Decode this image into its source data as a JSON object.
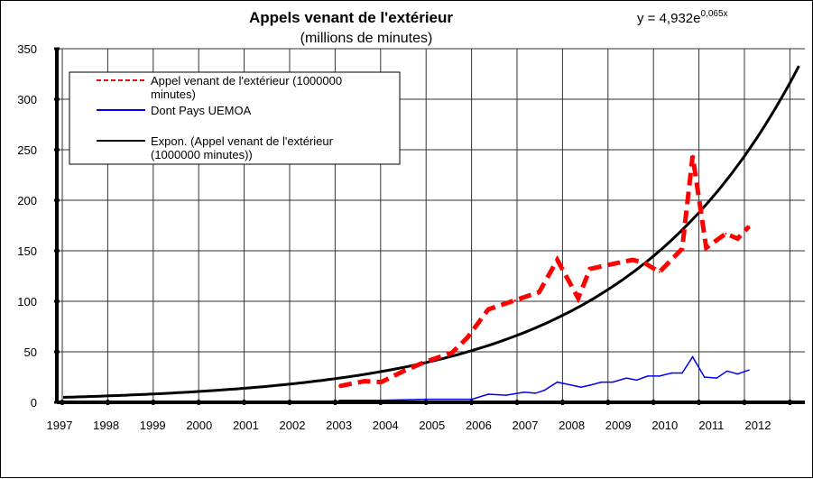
{
  "chart_data": {
    "type": "line",
    "title": "Appels venant de l'extérieur",
    "subtitle": "(millions de minutes)",
    "equation": {
      "base": "y = 4,932e",
      "exponent": "0,065x"
    },
    "xlabel": "",
    "ylabel": "",
    "ylim": [
      0,
      350
    ],
    "yticks": [
      "0",
      "50",
      "100",
      "150",
      "200",
      "250",
      "300",
      "350"
    ],
    "xticks": [
      "1997",
      "1998",
      "1999",
      "2000",
      "2001",
      "2002",
      "2003",
      "2004",
      "2005",
      "2006",
      "2007",
      "2008",
      "2009",
      "2010",
      "2011",
      "2012"
    ],
    "grid": true,
    "legend_position": "top-left",
    "series": [
      {
        "name": "Appel venant de l'extérieur (1000000 minutes)",
        "legend_lines": [
          "Appel venant de l'extérieur (1000000",
          "minutes)"
        ],
        "color": "#ff0000",
        "style": "dashed",
        "x": [
          2003.08,
          2003.64,
          2004.0,
          2004.5,
          2004.97,
          2005.56,
          2005.9,
          2006.36,
          2006.95,
          2007.48,
          2007.88,
          2008.34,
          2008.6,
          2009.0,
          2009.54,
          2009.8,
          2010.13,
          2010.63,
          2010.86,
          2011.16,
          2011.59,
          2011.85,
          2012.1
        ],
        "values": [
          16,
          21,
          20,
          31,
          40,
          49,
          64,
          92,
          101,
          109,
          141,
          103,
          132,
          136,
          141,
          138,
          129,
          152,
          244,
          153,
          167,
          162,
          174
        ]
      },
      {
        "name": "Dont Pays UEMOA",
        "legend_lines": [
          "Dont Pays UEMOA"
        ],
        "color": "#0000ee",
        "style": "solid",
        "x": [
          2003.08,
          2004.0,
          2005.0,
          2006.0,
          2006.36,
          2006.75,
          2007.15,
          2007.4,
          2007.6,
          2007.88,
          2008.4,
          2008.6,
          2008.85,
          2009.1,
          2009.4,
          2009.63,
          2009.87,
          2010.13,
          2010.4,
          2010.63,
          2010.86,
          2011.12,
          2011.39,
          2011.62,
          2011.85,
          2012.1
        ],
        "values": [
          2,
          2,
          3,
          3,
          8,
          7,
          10,
          9,
          12,
          20,
          15,
          17,
          20,
          20,
          24,
          22,
          26,
          26,
          29,
          29,
          45,
          25,
          24,
          31,
          28,
          32
        ]
      },
      {
        "name": "Expon. (Appel venant de l'extérieur (1000000 minutes))",
        "legend_lines": [
          "Expon. (Appel venant de l'extérieur",
          "(1000000 minutes))"
        ],
        "color": "#000000",
        "style": "trendline",
        "a": 4.932,
        "b_per_quarter": 0.065,
        "x_start": 1997,
        "x_end": 2013.2
      }
    ]
  }
}
